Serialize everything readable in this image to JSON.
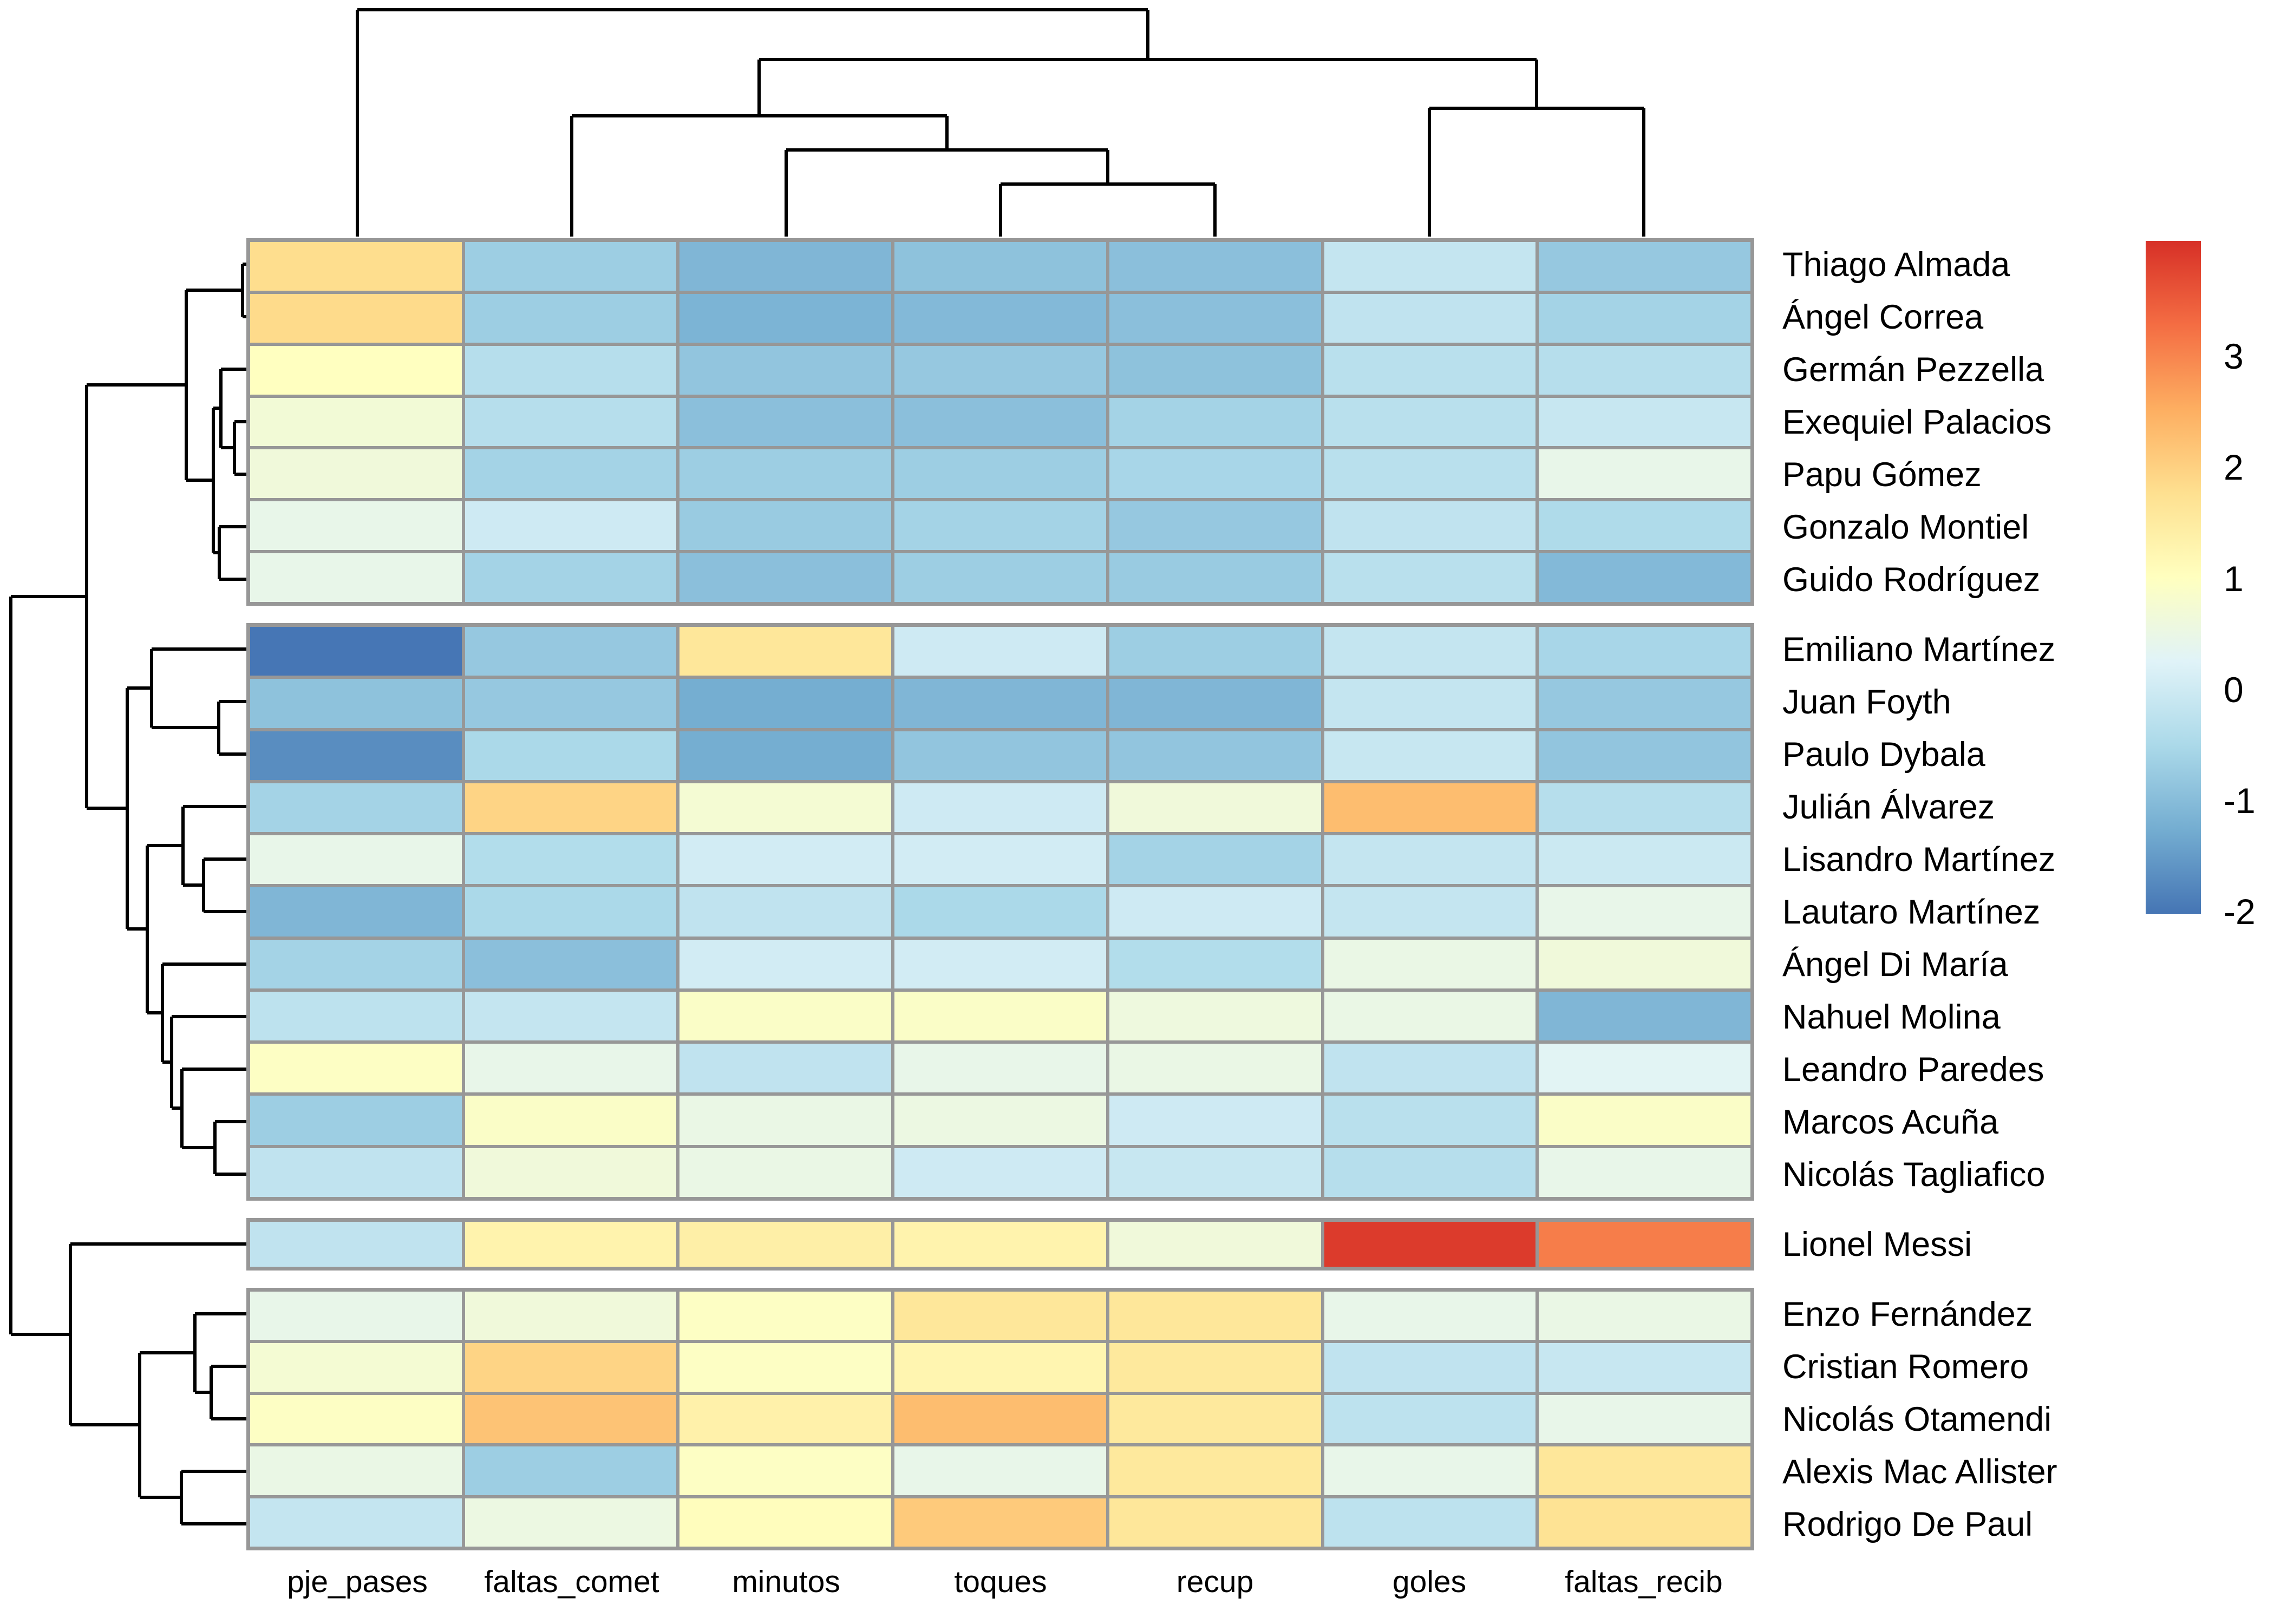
{
  "chart_data": {
    "type": "heatmap",
    "title": "",
    "columns": [
      "pje_pases",
      "faltas_comet",
      "minutos",
      "toques",
      "recup",
      "goles",
      "faltas_recib"
    ],
    "rows": [
      "Thiago Almada",
      "Ángel Correa",
      "Germán Pezzella",
      "Exequiel Palacios",
      "Papu Gómez",
      "Gonzalo Montiel",
      "Guido Rodríguez",
      "Emiliano Martínez",
      "Juan Foyth",
      "Paulo Dybala",
      "Julián Álvarez",
      "Lisandro Martínez",
      "Lautaro Martínez",
      "Ángel Di María",
      "Nahuel Molina",
      "Leandro Paredes",
      "Marcos Acuña",
      "Nicolás Tagliafico",
      "Lionel Messi",
      "Enzo Fernández",
      "Cristian Romero",
      "Nicolás Otamendi",
      "Alexis Mac Allister",
      "Rodrigo De Paul"
    ],
    "row_blocks": [
      [
        0,
        7
      ],
      [
        7,
        18
      ],
      [
        18,
        19
      ],
      [
        19,
        24
      ]
    ],
    "values": [
      [
        1.8,
        -0.7,
        -1.1,
        -0.9,
        -0.95,
        -0.15,
        -0.8
      ],
      [
        1.85,
        -0.7,
        -1.15,
        -1.05,
        -0.95,
        -0.2,
        -0.6
      ],
      [
        1.0,
        -0.35,
        -0.85,
        -0.8,
        -0.9,
        -0.3,
        -0.35
      ],
      [
        0.7,
        -0.35,
        -0.95,
        -0.95,
        -0.6,
        -0.3,
        -0.1
      ],
      [
        0.65,
        -0.6,
        -0.7,
        -0.7,
        -0.55,
        -0.3,
        0.45
      ],
      [
        0.45,
        0.0,
        -0.75,
        -0.6,
        -0.8,
        -0.2,
        -0.45
      ],
      [
        0.45,
        -0.6,
        -0.95,
        -0.7,
        -0.75,
        -0.3,
        -1.05
      ],
      [
        -2.0,
        -0.8,
        1.6,
        0.0,
        -0.7,
        -0.15,
        -0.55
      ],
      [
        -0.9,
        -0.8,
        -1.25,
        -1.1,
        -1.1,
        -0.15,
        -0.8
      ],
      [
        -1.7,
        -0.5,
        -1.25,
        -0.85,
        -0.85,
        -0.1,
        -0.85
      ],
      [
        -0.6,
        1.95,
        0.75,
        0.0,
        0.65,
        2.3,
        -0.35
      ],
      [
        0.45,
        -0.4,
        0.05,
        0.05,
        -0.6,
        -0.15,
        -0.05
      ],
      [
        -1.1,
        -0.5,
        -0.2,
        -0.5,
        0.0,
        -0.15,
        0.45
      ],
      [
        -0.6,
        -0.95,
        0.05,
        0.05,
        -0.4,
        0.5,
        0.65
      ],
      [
        -0.25,
        -0.15,
        0.9,
        0.9,
        0.6,
        0.5,
        -1.1
      ],
      [
        0.95,
        0.45,
        -0.2,
        0.45,
        0.5,
        -0.2,
        0.3
      ],
      [
        -0.7,
        0.9,
        0.5,
        0.55,
        0.0,
        -0.3,
        0.9
      ],
      [
        -0.2,
        0.65,
        0.5,
        0.0,
        -0.1,
        -0.35,
        0.45
      ],
      [
        -0.2,
        1.3,
        1.4,
        1.3,
        0.65,
        3.9,
        3.1
      ],
      [
        0.45,
        0.65,
        0.95,
        1.6,
        1.6,
        0.45,
        0.5
      ],
      [
        0.75,
        1.95,
        0.95,
        1.25,
        1.55,
        -0.2,
        -0.1
      ],
      [
        0.95,
        2.2,
        1.35,
        2.3,
        1.55,
        -0.25,
        0.45
      ],
      [
        0.5,
        -0.7,
        0.95,
        0.45,
        1.55,
        0.45,
        1.6
      ],
      [
        -0.15,
        0.55,
        1.05,
        2.1,
        1.6,
        -0.25,
        1.7
      ]
    ],
    "colormap": {
      "name": "RdYlBu-reversed",
      "anchor_values": [
        -2.02,
        -1.2625,
        -0.505,
        0.2525,
        1.01,
        1.7675,
        2.525,
        3.2825,
        4.04
      ],
      "anchor_colors": [
        "#4575b4",
        "#74add1",
        "#abd9e9",
        "#e0f3f8",
        "#ffffbf",
        "#fee090",
        "#fdae61",
        "#f46d43",
        "#d73027"
      ]
    },
    "legend": {
      "ticks": [
        "3",
        "2",
        "1",
        "0",
        "-1",
        "-2"
      ],
      "tick_values": [
        3,
        2,
        1,
        0,
        -1,
        -2
      ],
      "vmax": 4.04,
      "vmin": -2.02,
      "position": "right"
    },
    "grid_line_color": "#979797",
    "dendrogram_color": "#000000",
    "col_dendrogram_segments": [
      [
        660,
        437,
        660,
        18
      ],
      [
        2120,
        110,
        2120,
        18
      ],
      [
        660,
        18,
        2120,
        18
      ],
      [
        1402,
        214,
        1402,
        110
      ],
      [
        2838,
        200,
        2838,
        110
      ],
      [
        1402,
        110,
        2838,
        110
      ],
      [
        1056,
        437,
        1056,
        214
      ],
      [
        1749,
        277,
        1749,
        214
      ],
      [
        1056,
        214,
        1749,
        214
      ],
      [
        1452,
        437,
        1452,
        277
      ],
      [
        2046,
        340,
        2046,
        277
      ],
      [
        1452,
        277,
        2046,
        277
      ],
      [
        1848,
        437,
        1848,
        340
      ],
      [
        2244,
        437,
        2244,
        340
      ],
      [
        1848,
        340,
        2244,
        340
      ],
      [
        2640,
        437,
        2640,
        200
      ],
      [
        3036,
        437,
        3036,
        200
      ],
      [
        2640,
        200,
        3036,
        200
      ]
    ],
    "row_dendrogram_segments": [
      [
        448,
        488,
        458,
        488
      ],
      [
        448,
        585,
        458,
        585
      ],
      [
        448,
        488,
        448,
        585
      ],
      [
        433,
        779,
        458,
        779
      ],
      [
        433,
        876,
        458,
        876
      ],
      [
        433,
        779,
        433,
        876
      ],
      [
        408,
        682,
        458,
        682
      ],
      [
        408,
        827,
        433,
        827
      ],
      [
        408,
        682,
        408,
        827
      ],
      [
        405,
        973,
        458,
        973
      ],
      [
        405,
        1070,
        458,
        1070
      ],
      [
        405,
        973,
        405,
        1070
      ],
      [
        394,
        754,
        408,
        754
      ],
      [
        394,
        1021,
        405,
        1021
      ],
      [
        394,
        754,
        394,
        1021
      ],
      [
        344,
        536,
        448,
        536
      ],
      [
        344,
        887,
        394,
        887
      ],
      [
        344,
        536,
        344,
        887
      ],
      [
        404,
        1296,
        458,
        1296
      ],
      [
        404,
        1393,
        458,
        1393
      ],
      [
        404,
        1296,
        404,
        1393
      ],
      [
        280,
        1199,
        458,
        1199
      ],
      [
        280,
        1344,
        404,
        1344
      ],
      [
        280,
        1199,
        280,
        1344
      ],
      [
        376,
        1587,
        458,
        1587
      ],
      [
        376,
        1684,
        458,
        1684
      ],
      [
        376,
        1587,
        376,
        1684
      ],
      [
        338,
        1490,
        458,
        1490
      ],
      [
        338,
        1635,
        376,
        1635
      ],
      [
        338,
        1490,
        338,
        1635
      ],
      [
        397,
        2072,
        458,
        2072
      ],
      [
        397,
        2169,
        458,
        2169
      ],
      [
        397,
        2072,
        397,
        2169
      ],
      [
        336,
        1975,
        458,
        1975
      ],
      [
        336,
        2120,
        397,
        2120
      ],
      [
        336,
        1975,
        336,
        2120
      ],
      [
        317,
        1878,
        458,
        1878
      ],
      [
        317,
        2047,
        336,
        2047
      ],
      [
        317,
        1878,
        317,
        2047
      ],
      [
        300,
        1781,
        458,
        1781
      ],
      [
        300,
        1962,
        317,
        1962
      ],
      [
        300,
        1781,
        300,
        1962
      ],
      [
        272,
        1562,
        338,
        1562
      ],
      [
        272,
        1871,
        300,
        1871
      ],
      [
        272,
        1562,
        272,
        1871
      ],
      [
        235,
        1271,
        280,
        1271
      ],
      [
        235,
        1716,
        272,
        1716
      ],
      [
        235,
        1271,
        235,
        1716
      ],
      [
        160,
        711,
        344,
        711
      ],
      [
        160,
        1493,
        235,
        1493
      ],
      [
        160,
        711,
        160,
        1493
      ],
      [
        390,
        2524,
        458,
        2524
      ],
      [
        390,
        2621,
        458,
        2621
      ],
      [
        390,
        2524,
        390,
        2621
      ],
      [
        360,
        2427,
        458,
        2427
      ],
      [
        360,
        2572,
        390,
        2572
      ],
      [
        360,
        2427,
        360,
        2572
      ],
      [
        335,
        2718,
        458,
        2718
      ],
      [
        335,
        2815,
        458,
        2815
      ],
      [
        335,
        2718,
        335,
        2815
      ],
      [
        258,
        2499,
        360,
        2499
      ],
      [
        258,
        2766,
        335,
        2766
      ],
      [
        258,
        2499,
        258,
        2766
      ],
      [
        130,
        2298,
        458,
        2298
      ],
      [
        130,
        2632,
        258,
        2632
      ],
      [
        130,
        2298,
        130,
        2632
      ],
      [
        20,
        1102,
        160,
        1102
      ],
      [
        20,
        2465,
        130,
        2465
      ],
      [
        20,
        1102,
        20,
        2465
      ]
    ]
  }
}
